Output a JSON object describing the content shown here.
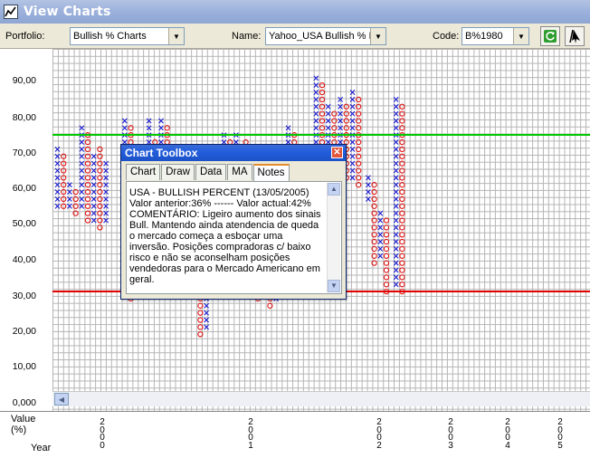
{
  "window": {
    "title": "View Charts",
    "app_icon": "chart-line-icon"
  },
  "toolbar": {
    "portfolio_label": "Portfolio:",
    "portfolio_value": "Bullish % Charts",
    "name_label": "Name:",
    "name_value": "Yahoo_USA Bullish % I",
    "code_label": "Code:",
    "code_value": "B%1980",
    "refresh_icon": "refresh-icon",
    "pointer_icon": "pointer-icon"
  },
  "yaxis": {
    "labels": [
      "90,00",
      "80,00",
      "70,00",
      "60,00",
      "50,00",
      "40,00",
      "30,00",
      "20,00",
      "10,00",
      "0,000"
    ]
  },
  "bottom": {
    "value_label": "Value",
    "percent_label": "(%)",
    "year_label": "Year",
    "years": [
      {
        "digits": [
          "2",
          "0",
          "0",
          "0"
        ]
      },
      {
        "digits": [
          "2",
          "0",
          "0",
          "1"
        ]
      },
      {
        "digits": [
          "2",
          "0",
          "0",
          "2"
        ]
      },
      {
        "digits": [
          "2",
          "0",
          "0",
          "3"
        ]
      },
      {
        "digits": [
          "2",
          "0",
          "0",
          "4"
        ]
      },
      {
        "digits": [
          "2",
          "0",
          "0",
          "5"
        ]
      }
    ]
  },
  "reference_lines": {
    "green": {
      "value": 74,
      "color": "#00c800"
    },
    "red": {
      "value": 30,
      "color": "#e00000"
    }
  },
  "chart_data": {
    "type": "point-and-figure",
    "box_size": 2,
    "ylim": [
      0,
      100
    ],
    "x_color": "#1a1ad0",
    "o_color": "#e01010",
    "ylabel": "Value (%)",
    "xlabel": "Year",
    "columns": [
      {
        "type": "X",
        "from": 54,
        "to": 70
      },
      {
        "type": "O",
        "from": 54,
        "to": 68
      },
      {
        "type": "X",
        "from": 54,
        "to": 60
      },
      {
        "type": "O",
        "from": 52,
        "to": 58
      },
      {
        "type": "X",
        "from": 54,
        "to": 76
      },
      {
        "type": "O",
        "from": 50,
        "to": 74
      },
      {
        "type": "X",
        "from": 50,
        "to": 68
      },
      {
        "type": "O",
        "from": 48,
        "to": 70
      },
      {
        "type": "X",
        "from": 50,
        "to": 66
      },
      {
        "type": "X",
        "from": 60,
        "to": 78
      },
      {
        "type": "O",
        "from": 28,
        "to": 76
      },
      {
        "type": "X",
        "from": 30,
        "to": 56
      },
      {
        "type": "O",
        "from": 30,
        "to": 48
      },
      {
        "type": "X",
        "from": 32,
        "to": 78
      },
      {
        "type": "O",
        "from": 30,
        "to": 72
      },
      {
        "type": "X",
        "from": 56,
        "to": 78
      },
      {
        "type": "O",
        "from": 54,
        "to": 76
      },
      {
        "type": "O",
        "from": 18,
        "to": 40
      },
      {
        "type": "X",
        "from": 20,
        "to": 44
      },
      {
        "type": "O",
        "from": 60,
        "to": 70
      },
      {
        "type": "X",
        "from": 62,
        "to": 74
      },
      {
        "type": "O",
        "from": 62,
        "to": 72
      },
      {
        "type": "X",
        "from": 64,
        "to": 74
      },
      {
        "type": "O",
        "from": 40,
        "to": 72
      },
      {
        "type": "X",
        "from": 42,
        "to": 70
      },
      {
        "type": "O",
        "from": 28,
        "to": 66
      },
      {
        "type": "X",
        "from": 30,
        "to": 64
      },
      {
        "type": "O",
        "from": 26,
        "to": 62
      },
      {
        "type": "X",
        "from": 28,
        "to": 64
      },
      {
        "type": "O",
        "from": 30,
        "to": 66
      },
      {
        "type": "X",
        "from": 32,
        "to": 76
      },
      {
        "type": "O",
        "from": 38,
        "to": 74
      },
      {
        "type": "X",
        "from": 40,
        "to": 64
      },
      {
        "type": "O",
        "from": 38,
        "to": 62
      },
      {
        "type": "X",
        "from": 40,
        "to": 90
      },
      {
        "type": "O",
        "from": 58,
        "to": 88
      },
      {
        "type": "X",
        "from": 60,
        "to": 82
      },
      {
        "type": "O",
        "from": 62,
        "to": 80
      },
      {
        "type": "X",
        "from": 64,
        "to": 84
      },
      {
        "type": "O",
        "from": 62,
        "to": 82
      },
      {
        "type": "X",
        "from": 62,
        "to": 86
      },
      {
        "type": "O",
        "from": 60,
        "to": 84
      },
      {
        "type": "X",
        "from": 56,
        "to": 62
      },
      {
        "type": "O",
        "from": 38,
        "to": 60
      },
      {
        "type": "X",
        "from": 40,
        "to": 52
      },
      {
        "type": "O",
        "from": 30,
        "to": 50
      },
      {
        "type": "X",
        "from": 32,
        "to": 84
      },
      {
        "type": "O",
        "from": 30,
        "to": 82
      }
    ]
  },
  "toolbox": {
    "title": "Chart Toolbox",
    "close_icon": "close-icon",
    "tabs": [
      "Chart",
      "Draw",
      "Data",
      "MA",
      "Notes"
    ],
    "active_tab": "Notes",
    "notes": "USA - BULLISH PERCENT (13/05/2005)\nValor anterior:36% ------ Valor actual:42%\nCOMENTÁRIO: Ligeiro aumento dos sinais Bull. Mantendo ainda atendencia de queda o mercado começa a esboçar uma inversão. Posições compradoras c/ baixo risco e não se aconselham posições vendedoras para o Mercado Americano em geral."
  }
}
